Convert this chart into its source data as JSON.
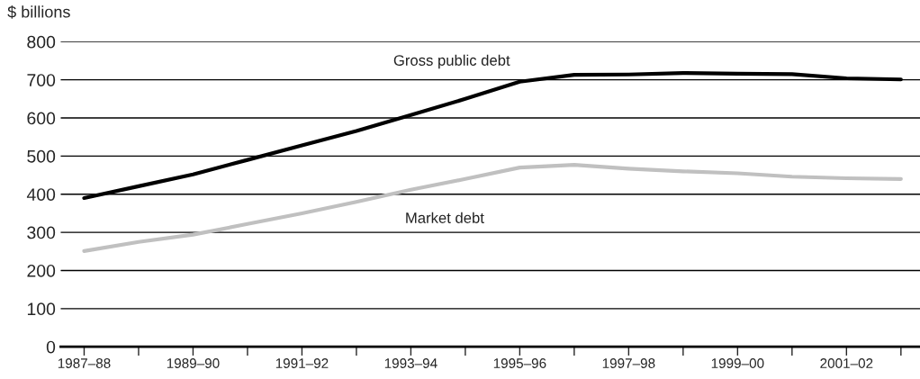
{
  "chart_data": {
    "type": "line",
    "ylabel": "$ billions",
    "categories": [
      "1987–88",
      null,
      "1989–90",
      null,
      "1991–92",
      null,
      "1993–94",
      null,
      "1995–96",
      null,
      "1997–98",
      null,
      "1999–00",
      null,
      "2001–02",
      null
    ],
    "series": [
      {
        "name": "Gross public debt",
        "color": "#000000",
        "values": [
          390,
          421,
          452,
          490,
          528,
          566,
          608,
          650,
          695,
          713,
          714,
          718,
          716,
          715,
          704,
          701
        ]
      },
      {
        "name": "Market debt",
        "color": "#c0c0c0",
        "values": [
          251,
          275,
          294,
          322,
          350,
          380,
          412,
          440,
          470,
          477,
          467,
          460,
          455,
          446,
          442,
          440
        ]
      }
    ],
    "ylim": [
      0,
      800
    ],
    "yticks": [
      0,
      100,
      200,
      300,
      400,
      500,
      600,
      700,
      800
    ],
    "grid": "y",
    "legend": false,
    "marker": "none",
    "line_style": "solid"
  }
}
